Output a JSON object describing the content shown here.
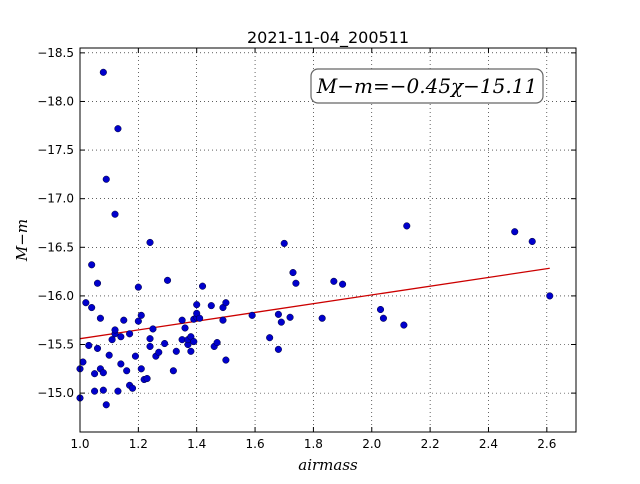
{
  "chart_data": {
    "type": "scatter",
    "title": "2021-11-04_200511",
    "xlabel": "airmass",
    "ylabel": "M−m",
    "xlim": [
      1.0,
      2.7
    ],
    "ylim": [
      -18.55,
      -14.6
    ],
    "y_inverted": true,
    "grid": true,
    "grid_style": "dotted",
    "x_ticks": [
      1.0,
      1.2,
      1.4,
      1.6,
      1.8,
      2.0,
      2.2,
      2.4,
      2.6
    ],
    "x_tick_labels": [
      "1.0",
      "1.2",
      "1.4",
      "1.6",
      "1.8",
      "2.0",
      "2.2",
      "2.4",
      "2.6"
    ],
    "y_ticks": [
      -15.0,
      -15.5,
      -16.0,
      -16.5,
      -17.0,
      -17.5,
      -18.0,
      -18.5
    ],
    "y_tick_labels": [
      "−15.0",
      "−15.5",
      "−16.0",
      "−16.5",
      "−17.0",
      "−17.5",
      "−18.0",
      "−18.5"
    ],
    "annotation": "M−m=−0.45χ−15.11",
    "annotation_placement": "top-right",
    "marker_color": "#0000cc",
    "line_color": "#cc0000",
    "fit": {
      "slope": -0.45,
      "intercept": -15.11,
      "x_range": [
        1.0,
        2.61
      ]
    },
    "points": [
      [
        1.0,
        -14.95
      ],
      [
        1.0,
        -15.25
      ],
      [
        1.01,
        -15.32
      ],
      [
        1.02,
        -15.93
      ],
      [
        1.03,
        -15.49
      ],
      [
        1.04,
        -15.88
      ],
      [
        1.04,
        -16.32
      ],
      [
        1.05,
        -15.02
      ],
      [
        1.05,
        -15.2
      ],
      [
        1.06,
        -16.13
      ],
      [
        1.06,
        -15.46
      ],
      [
        1.07,
        -15.25
      ],
      [
        1.07,
        -15.77
      ],
      [
        1.08,
        -15.21
      ],
      [
        1.08,
        -15.03
      ],
      [
        1.09,
        -14.88
      ],
      [
        1.09,
        -17.2
      ],
      [
        1.08,
        -18.3
      ],
      [
        1.1,
        -15.39
      ],
      [
        1.11,
        -15.55
      ],
      [
        1.12,
        -15.61
      ],
      [
        1.12,
        -15.65
      ],
      [
        1.12,
        -16.84
      ],
      [
        1.13,
        -15.02
      ],
      [
        1.13,
        -17.72
      ],
      [
        1.14,
        -15.3
      ],
      [
        1.14,
        -15.58
      ],
      [
        1.15,
        -15.75
      ],
      [
        1.16,
        -15.23
      ],
      [
        1.17,
        -15.08
      ],
      [
        1.17,
        -15.61
      ],
      [
        1.18,
        -15.05
      ],
      [
        1.19,
        -15.38
      ],
      [
        1.2,
        -15.74
      ],
      [
        1.2,
        -16.09
      ],
      [
        1.21,
        -15.25
      ],
      [
        1.21,
        -15.8
      ],
      [
        1.22,
        -15.14
      ],
      [
        1.23,
        -15.15
      ],
      [
        1.24,
        -15.48
      ],
      [
        1.24,
        -15.56
      ],
      [
        1.24,
        -16.55
      ],
      [
        1.25,
        -15.66
      ],
      [
        1.26,
        -15.38
      ],
      [
        1.27,
        -15.42
      ],
      [
        1.29,
        -15.51
      ],
      [
        1.3,
        -16.16
      ],
      [
        1.32,
        -15.23
      ],
      [
        1.33,
        -15.43
      ],
      [
        1.35,
        -15.55
      ],
      [
        1.35,
        -15.75
      ],
      [
        1.36,
        -15.67
      ],
      [
        1.37,
        -15.5
      ],
      [
        1.37,
        -15.55
      ],
      [
        1.38,
        -15.58
      ],
      [
        1.38,
        -15.43
      ],
      [
        1.39,
        -15.76
      ],
      [
        1.39,
        -15.53
      ],
      [
        1.4,
        -15.78
      ],
      [
        1.4,
        -15.82
      ],
      [
        1.4,
        -15.91
      ],
      [
        1.41,
        -15.77
      ],
      [
        1.42,
        -16.1
      ],
      [
        1.45,
        -15.9
      ],
      [
        1.46,
        -15.48
      ],
      [
        1.47,
        -15.52
      ],
      [
        1.49,
        -15.75
      ],
      [
        1.49,
        -15.88
      ],
      [
        1.5,
        -15.93
      ],
      [
        1.5,
        -15.34
      ],
      [
        1.59,
        -15.8
      ],
      [
        1.65,
        -15.57
      ],
      [
        1.68,
        -15.45
      ],
      [
        1.68,
        -15.81
      ],
      [
        1.69,
        -15.73
      ],
      [
        1.7,
        -16.54
      ],
      [
        1.72,
        -15.78
      ],
      [
        1.73,
        -16.24
      ],
      [
        1.74,
        -16.13
      ],
      [
        1.83,
        -15.77
      ],
      [
        1.87,
        -16.15
      ],
      [
        1.9,
        -16.12
      ],
      [
        2.03,
        -15.86
      ],
      [
        2.04,
        -15.77
      ],
      [
        2.11,
        -15.7
      ],
      [
        2.12,
        -16.72
      ],
      [
        2.49,
        -16.66
      ],
      [
        2.55,
        -16.56
      ],
      [
        2.61,
        -16.0
      ]
    ]
  }
}
